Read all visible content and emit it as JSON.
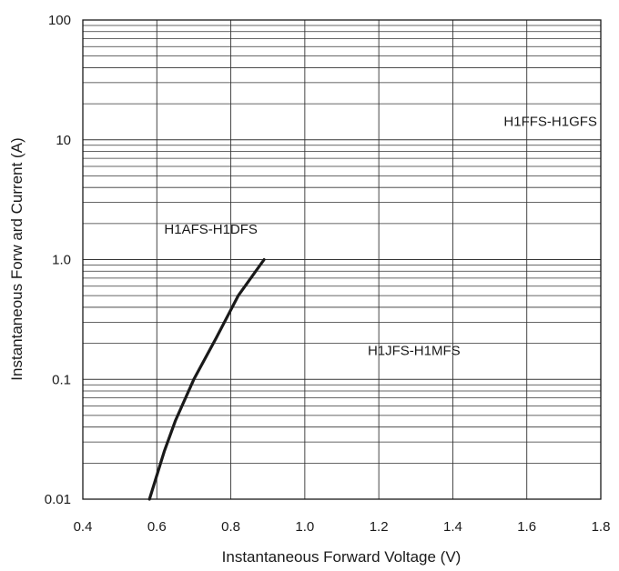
{
  "chart_data": {
    "type": "line",
    "title": "",
    "xlabel": "Instantaneous Forward Voltage (V)",
    "ylabel": "Instantaneous Forw  ard Current (A)",
    "xlim": [
      0.4,
      1.8
    ],
    "ylim": [
      0.01,
      100
    ],
    "yscale": "log",
    "grid": true,
    "xticks": [
      {
        "value": 0.4,
        "label": "0.4"
      },
      {
        "value": 0.6,
        "label": "0.6"
      },
      {
        "value": 0.8,
        "label": "0.8"
      },
      {
        "value": 1.0,
        "label": "1.0"
      },
      {
        "value": 1.2,
        "label": "1.2"
      },
      {
        "value": 1.4,
        "label": "1.4"
      },
      {
        "value": 1.6,
        "label": "1.6"
      },
      {
        "value": 1.8,
        "label": "1.8"
      }
    ],
    "yticks": [
      {
        "value": 0.01,
        "label": "0.01"
      },
      {
        "value": 0.1,
        "label": "0.1"
      },
      {
        "value": 1,
        "label": "1.0"
      },
      {
        "value": 10,
        "label": "10"
      },
      {
        "value": 100,
        "label": "100"
      }
    ],
    "series": [
      {
        "name": "H1AFS-H1DFS",
        "color": "#1a1a1a",
        "x": [
          0.58,
          0.62,
          0.65,
          0.7,
          0.76,
          0.82,
          0.89
        ],
        "y": [
          0.01,
          0.025,
          0.045,
          0.1,
          0.22,
          0.5,
          1.0
        ]
      }
    ],
    "annotations": [
      {
        "text": "H1FFS-H1GFS",
        "x": 1.79,
        "y": 13,
        "anchor": "end"
      },
      {
        "text": "H1AFS-H1DFS",
        "x": 0.62,
        "y": 1.65,
        "anchor": "start"
      },
      {
        "text": "H1JFS-H1MFS",
        "x": 1.17,
        "y": 0.16,
        "anchor": "start"
      }
    ]
  }
}
